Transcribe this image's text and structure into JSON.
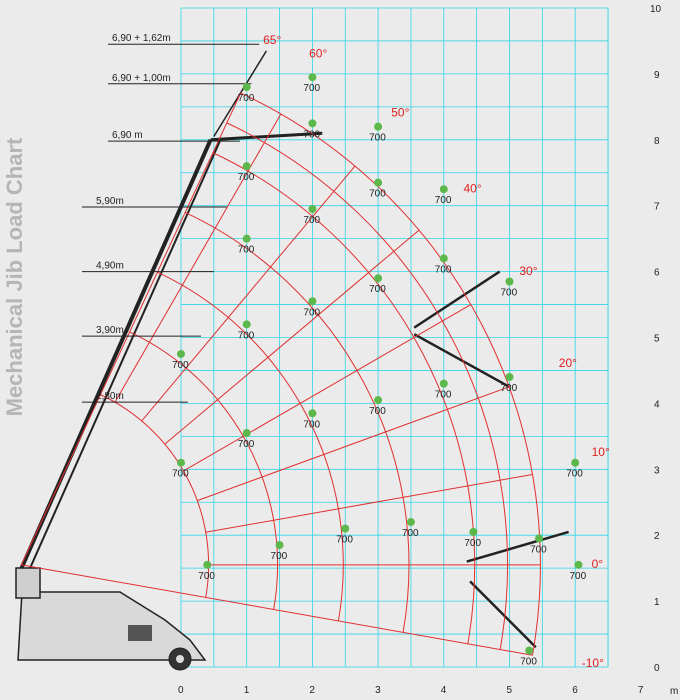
{
  "side_title": "Mechanical Jib Load Chart",
  "colors": {
    "background": "#ebebeb",
    "grid": "#2fd6e6",
    "radius_line": "#e03030",
    "load_point": "#5cb84a",
    "label": "#222222",
    "angle_label": "#e02020",
    "crane": "#222222"
  },
  "chart_data": {
    "type": "scatter",
    "title": "Mechanical Jib Load Chart",
    "xlabel": "m",
    "ylabel": "",
    "xlim": [
      0,
      7
    ],
    "ylim": [
      0,
      10
    ],
    "grid": true,
    "x_ticks": [
      "0",
      "1",
      "2",
      "3",
      "4",
      "5",
      "6",
      "7"
    ],
    "y_ticks": [
      "0",
      "1",
      "2",
      "3",
      "4",
      "5",
      "6",
      "7",
      "8",
      "9",
      "10"
    ],
    "x_unit": "m",
    "pivot": [
      -2.43,
      1.55
    ],
    "radii": [
      2.85,
      3.9,
      4.9,
      5.9,
      6.9,
      7.4,
      7.9
    ],
    "angles": [
      -10,
      0,
      10,
      20,
      30,
      40,
      50,
      60,
      65
    ],
    "angle_labels": [
      {
        "text": "65°",
        "x": 1.25,
        "y": 9.45
      },
      {
        "text": "60°",
        "x": 1.95,
        "y": 9.25
      },
      {
        "text": "50°",
        "x": 3.2,
        "y": 8.35
      },
      {
        "text": "40°",
        "x": 4.3,
        "y": 7.2
      },
      {
        "text": "30°",
        "x": 5.15,
        "y": 5.95
      },
      {
        "text": "20°",
        "x": 5.75,
        "y": 4.55
      },
      {
        "text": "10°",
        "x": 6.25,
        "y": 3.2
      },
      {
        "text": "0°",
        "x": 6.25,
        "y": 1.5
      },
      {
        "text": "-10°",
        "x": 6.1,
        "y": 0.0
      }
    ],
    "boom_labels": [
      {
        "text": "6,90 + 1,62m",
        "y": 9.45
      },
      {
        "text": "6,90 + 1,00m",
        "y": 8.85
      },
      {
        "text": "6,90 m",
        "y": 7.98
      },
      {
        "text": "5,90m",
        "y": 6.98
      },
      {
        "text": "4,90m",
        "y": 6.0
      },
      {
        "text": "3,90m",
        "y": 5.02
      },
      {
        "text": "2,80m",
        "y": 4.02
      }
    ],
    "series": [
      {
        "points": [
          {
            "x": 0.4,
            "y": 1.55,
            "label": "700"
          },
          {
            "x": 1.5,
            "y": 1.85,
            "label": "700"
          },
          {
            "x": 2.5,
            "y": 2.1,
            "label": "700"
          },
          {
            "x": 3.5,
            "y": 2.2,
            "label": "700"
          },
          {
            "x": 4.45,
            "y": 2.05,
            "label": "700"
          },
          {
            "x": 5.45,
            "y": 1.95,
            "label": "700"
          },
          {
            "x": 6.05,
            "y": 1.55,
            "label": "700"
          },
          {
            "x": 5.3,
            "y": 0.25,
            "label": "700"
          },
          {
            "x": 0.0,
            "y": 3.1,
            "label": "700"
          },
          {
            "x": 0.0,
            "y": 4.75,
            "label": "700"
          },
          {
            "x": 1.0,
            "y": 3.55,
            "label": "700"
          },
          {
            "x": 2.0,
            "y": 3.85,
            "label": "700"
          },
          {
            "x": 3.0,
            "y": 4.05,
            "label": "700"
          },
          {
            "x": 4.0,
            "y": 4.3,
            "label": "700"
          },
          {
            "x": 5.0,
            "y": 4.4,
            "label": "700"
          },
          {
            "x": 6.0,
            "y": 3.1,
            "label": "700"
          },
          {
            "x": 1.0,
            "y": 5.2,
            "label": "700"
          },
          {
            "x": 2.0,
            "y": 5.55,
            "label": "700"
          },
          {
            "x": 3.0,
            "y": 5.9,
            "label": "700"
          },
          {
            "x": 4.0,
            "y": 6.2,
            "label": "700"
          },
          {
            "x": 5.0,
            "y": 5.85,
            "label": "700"
          },
          {
            "x": 1.0,
            "y": 6.5,
            "label": "700"
          },
          {
            "x": 2.0,
            "y": 6.95,
            "label": "700"
          },
          {
            "x": 3.0,
            "y": 7.35,
            "label": "700"
          },
          {
            "x": 4.0,
            "y": 7.25,
            "label": "700"
          },
          {
            "x": 1.0,
            "y": 7.6,
            "label": "700"
          },
          {
            "x": 2.0,
            "y": 8.25,
            "label": "700"
          },
          {
            "x": 3.0,
            "y": 8.2,
            "label": "700"
          },
          {
            "x": 1.0,
            "y": 8.8,
            "label": "700"
          },
          {
            "x": 2.0,
            "y": 8.95,
            "label": "700"
          }
        ]
      }
    ]
  }
}
